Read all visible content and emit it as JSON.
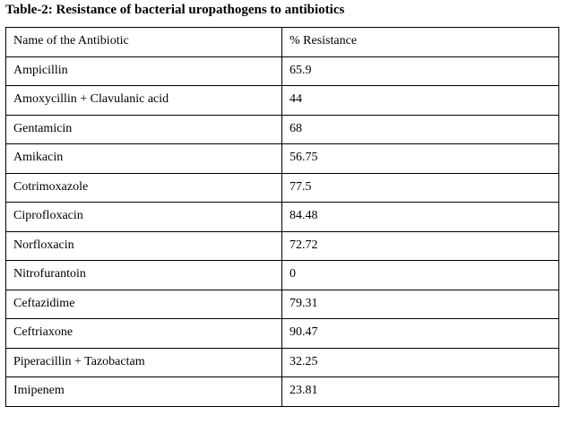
{
  "caption": "Table-2: Resistance of bacterial uropathogens to antibiotics",
  "table": {
    "headers": [
      "Name of the Antibiotic",
      "% Resistance"
    ],
    "rows": [
      [
        "Ampicillin",
        "65.9"
      ],
      [
        "Amoxycillin + Clavulanic acid",
        "44"
      ],
      [
        "Gentamicin",
        "68"
      ],
      [
        "Amikacin",
        "56.75"
      ],
      [
        "Cotrimoxazole",
        "77.5"
      ],
      [
        "Ciprofloxacin",
        "84.48"
      ],
      [
        "Norfloxacin",
        "72.72"
      ],
      [
        "Nitrofurantoin",
        "0"
      ],
      [
        "Ceftazidime",
        "79.31"
      ],
      [
        "Ceftriaxone",
        "90.47"
      ],
      [
        "Piperacillin + Tazobactam",
        "32.25"
      ],
      [
        "Imipenem",
        "23.81"
      ]
    ]
  }
}
